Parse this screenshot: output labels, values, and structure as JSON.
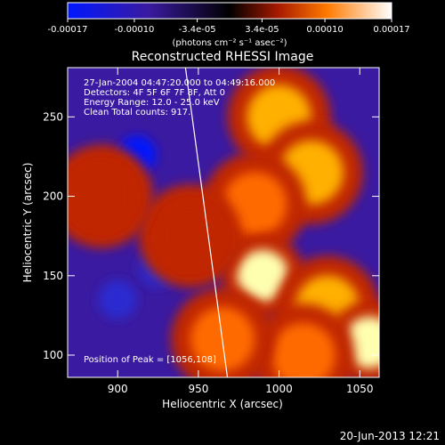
{
  "chart_data": {
    "type": "heatmap",
    "title": "Reconstructed RHESSI Image",
    "xlabel": "Heliocentric X (arcsec)",
    "ylabel": "Heliocentric Y (arcsec)",
    "xlim": [
      869,
      1062
    ],
    "ylim": [
      86,
      281
    ],
    "x_ticks": [
      900,
      950,
      1000,
      1050
    ],
    "y_ticks": [
      100,
      150,
      200,
      250
    ],
    "colorbar": {
      "unit": "(photons cm⁻² s⁻¹ asec⁻²)",
      "range": [
        -0.00017,
        0.00017
      ],
      "tick_values": [
        -0.00017,
        -0.0001,
        -3.4e-05,
        3.4e-05,
        0.0001,
        0.00017
      ],
      "tick_labels": [
        "-0.00017",
        "-0.00010",
        "-3.4e-05",
        "3.4e-05",
        "0.00010",
        "0.00017"
      ],
      "colors": [
        "#0018ff",
        "#3a1aa0",
        "#000000",
        "#a81a00",
        "#ff7a00",
        "#ffffff"
      ]
    },
    "annotations": [
      "27-Jan-2004 04:47:20.000 to 04:49:16.000",
      "Detectors: 4F 5F 6F 7F 8F, Att 0",
      "Energy Range: 12.0 - 25.0 keV",
      "Clean     Total counts: 917."
    ],
    "peak_label": "Position of Peak = [1056,108]",
    "peak": [
      1056,
      108
    ],
    "limb_line": [
      [
        942,
        281
      ],
      [
        968,
        86
      ]
    ],
    "bright_sources": [
      {
        "x": 1000,
        "y": 250,
        "value": 0.00012
      },
      {
        "x": 1020,
        "y": 215,
        "value": 0.00014
      },
      {
        "x": 985,
        "y": 195,
        "value": 0.0001
      },
      {
        "x": 990,
        "y": 150,
        "value": 0.00016
      },
      {
        "x": 1030,
        "y": 130,
        "value": 0.00013
      },
      {
        "x": 1056,
        "y": 108,
        "value": 0.00017
      },
      {
        "x": 1015,
        "y": 100,
        "value": 0.00011
      },
      {
        "x": 965,
        "y": 110,
        "value": 9e-05
      },
      {
        "x": 945,
        "y": 175,
        "value": 8e-05
      },
      {
        "x": 890,
        "y": 200,
        "value": 8e-05
      }
    ],
    "dim_sources": [
      {
        "x": 912,
        "y": 226,
        "value": -0.00017
      },
      {
        "x": 900,
        "y": 135,
        "value": -0.00012
      },
      {
        "x": 925,
        "y": 155,
        "value": -0.0001
      }
    ]
  },
  "footer": {
    "date": "20-Jun-2013 12:21"
  }
}
